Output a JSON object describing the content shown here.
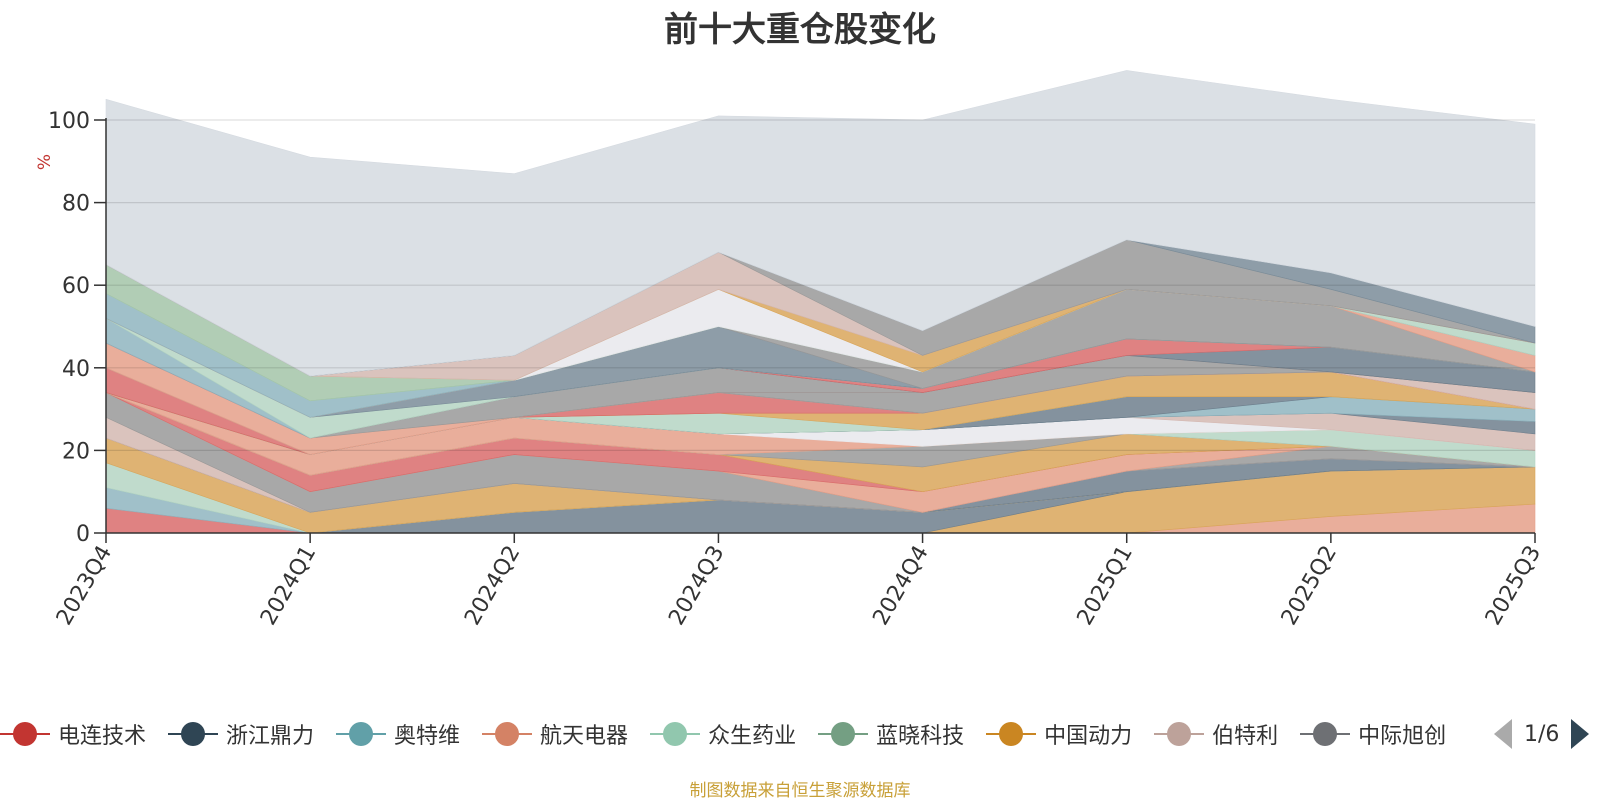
{
  "chart_data": {
    "type": "area",
    "title": "前十大重仓股变化",
    "ylabel": "%",
    "ylim": [
      0,
      100
    ],
    "yticks": [
      "0",
      "20",
      "40",
      "60",
      "80",
      "100"
    ],
    "categories": [
      "2023Q4",
      "2024Q1",
      "2024Q2",
      "2024Q3",
      "2024Q4",
      "2025Q1",
      "2025Q2",
      "2025Q3"
    ],
    "series": [
      {
        "name": "航天电器",
        "color": "#e5a08a",
        "values": [
          0,
          0,
          0,
          0,
          0,
          0,
          4,
          7
        ]
      },
      {
        "name": "中国动力",
        "color": "#d9a65a",
        "values": [
          0,
          0,
          0,
          0,
          0,
          10,
          11,
          9
        ]
      },
      {
        "name": "",
        "color": "#6e7f8d",
        "values": [
          0,
          0,
          5,
          8,
          5,
          0,
          0,
          0
        ]
      },
      {
        "name": "电连技术",
        "color": "#d96c6c",
        "values": [
          6,
          0,
          0,
          0,
          0,
          0,
          0,
          0
        ]
      },
      {
        "name": "奥特维",
        "color": "#8fb5bf",
        "values": [
          5,
          0,
          0,
          0,
          0,
          0,
          0,
          0
        ]
      },
      {
        "name": "众生药业",
        "color": "#b5d5c3",
        "values": [
          6,
          0,
          0,
          0,
          0,
          0,
          0,
          0
        ]
      },
      {
        "name": "中国动力",
        "color": "#d9a65a",
        "values": [
          6,
          5,
          7,
          0,
          0,
          0,
          0,
          0
        ]
      },
      {
        "name": "",
        "color": "#6e7f8d",
        "values": [
          0,
          0,
          0,
          0,
          0,
          5,
          3,
          0
        ]
      },
      {
        "name": "伯特利",
        "color": "#d4b8b2",
        "values": [
          5,
          0,
          0,
          0,
          0,
          0,
          0,
          0
        ]
      },
      {
        "name": "",
        "color": "#999999",
        "values": [
          6,
          5,
          7,
          7,
          0,
          0,
          3,
          0
        ]
      },
      {
        "name": "航天电器",
        "color": "#e5a08a",
        "values": [
          0,
          0,
          0,
          0,
          5,
          4,
          0,
          0
        ]
      },
      {
        "name": "电连技术",
        "color": "#d96c6c",
        "values": [
          0,
          4,
          4,
          4,
          0,
          0,
          0,
          0
        ]
      },
      {
        "name": "中国动力",
        "color": "#d9a65a",
        "values": [
          0,
          0,
          0,
          0,
          6,
          5,
          0,
          0
        ]
      },
      {
        "name": "",
        "color": "#999999",
        "values": [
          0,
          0,
          0,
          0,
          5,
          0,
          0,
          0
        ]
      },
      {
        "name": "众生药业",
        "color": "#b5d5c3",
        "values": [
          0,
          0,
          0,
          0,
          0,
          0,
          4,
          4
        ]
      },
      {
        "name": "航天电器",
        "color": "#e5a08a",
        "values": [
          0,
          5,
          5,
          5,
          0,
          0,
          0,
          0
        ]
      },
      {
        "name": "",
        "color": "#e8e8ec",
        "values": [
          0,
          0,
          0,
          0,
          4,
          4,
          0,
          0
        ]
      },
      {
        "name": "伯特利",
        "color": "#d4b8b2",
        "values": [
          0,
          0,
          0,
          0,
          0,
          0,
          4,
          4
        ]
      },
      {
        "name": "",
        "color": "#6e7f8d",
        "values": [
          0,
          0,
          0,
          0,
          0,
          0,
          0,
          3
        ]
      },
      {
        "name": "奥特维",
        "color": "#8fb5bf",
        "values": [
          0,
          0,
          0,
          0,
          0,
          0,
          4,
          3
        ]
      },
      {
        "name": "",
        "color": "#6e7f8d",
        "values": [
          0,
          0,
          0,
          0,
          0,
          5,
          0,
          0
        ]
      },
      {
        "name": "众生药业",
        "color": "#b5d5c3",
        "values": [
          0,
          0,
          0,
          5,
          0,
          0,
          0,
          0
        ]
      },
      {
        "name": "中国动力",
        "color": "#d9a65a",
        "values": [
          0,
          0,
          0,
          0,
          4,
          5,
          6,
          0
        ]
      },
      {
        "name": "电连技术",
        "color": "#d96c6c",
        "values": [
          6,
          0,
          0,
          5,
          0,
          0,
          0,
          0
        ]
      },
      {
        "name": "伯特利",
        "color": "#d4b8b2",
        "values": [
          0,
          0,
          0,
          0,
          0,
          0,
          0,
          4
        ]
      },
      {
        "name": "",
        "color": "#999999",
        "values": [
          0,
          0,
          0,
          0,
          5,
          5,
          0,
          0
        ]
      },
      {
        "name": "航天电器",
        "color": "#e5a08a",
        "values": [
          6,
          4,
          0,
          0,
          0,
          0,
          0,
          0
        ]
      },
      {
        "name": "",
        "color": "#999999",
        "values": [
          0,
          0,
          5,
          6,
          0,
          0,
          0,
          0
        ]
      },
      {
        "name": "",
        "color": "#6e7f8d",
        "values": [
          0,
          0,
          0,
          0,
          0,
          0,
          6,
          5
        ]
      },
      {
        "name": "电连技术",
        "color": "#d96c6c",
        "values": [
          0,
          0,
          0,
          0,
          1,
          4,
          0,
          0
        ]
      },
      {
        "name": "奥特维",
        "color": "#8fb5bf",
        "values": [
          6,
          0,
          0,
          0,
          0,
          0,
          0,
          0
        ]
      },
      {
        "name": "众生药业",
        "color": "#b5d5c3",
        "values": [
          0,
          5,
          0,
          0,
          0,
          0,
          0,
          0
        ]
      },
      {
        "name": "",
        "color": "#7a8c99",
        "values": [
          0,
          0,
          4,
          10,
          0,
          0,
          0,
          0
        ]
      },
      {
        "name": "",
        "color": "#999999",
        "values": [
          0,
          0,
          0,
          0,
          4,
          12,
          10,
          0
        ]
      },
      {
        "name": "航天电器",
        "color": "#e5a08a",
        "values": [
          0,
          0,
          0,
          0,
          0,
          0,
          0,
          4
        ]
      },
      {
        "name": "奥特维",
        "color": "#8fb5bf",
        "values": [
          6,
          4,
          0,
          0,
          0,
          0,
          0,
          0
        ]
      },
      {
        "name": "众生药业",
        "color": "#b5d5c3",
        "values": [
          0,
          0,
          0,
          0,
          0,
          0,
          0,
          3
        ]
      },
      {
        "name": "蓝晓科技",
        "color": "#a3c4a8",
        "values": [
          7,
          6,
          0,
          0,
          0,
          0,
          0,
          0
        ]
      },
      {
        "name": "",
        "color": "#e8e8ec",
        "values": [
          0,
          0,
          0,
          9,
          0,
          0,
          0,
          0
        ]
      },
      {
        "name": "中国动力",
        "color": "#d9a65a",
        "values": [
          0,
          0,
          0,
          0,
          4,
          0,
          0,
          0
        ]
      },
      {
        "name": "伯特利",
        "color": "#d4b8b2",
        "values": [
          0,
          0,
          6,
          9,
          0,
          0,
          0,
          0
        ]
      },
      {
        "name": "",
        "color": "#999999",
        "values": [
          0,
          0,
          0,
          0,
          6,
          12,
          4,
          0
        ]
      },
      {
        "name": "",
        "color": "#7a8c99",
        "values": [
          0,
          0,
          0,
          0,
          0,
          0,
          4,
          4
        ]
      },
      {
        "name": "",
        "color": "#d5dae0",
        "values": [
          40,
          53,
          44,
          33,
          51,
          41,
          42,
          49
        ]
      }
    ],
    "grid": true
  },
  "legend": {
    "items": [
      {
        "label": "电连技术",
        "color": "#c23531"
      },
      {
        "label": "浙江鼎力",
        "color": "#2f4554"
      },
      {
        "label": "奥特维",
        "color": "#61a0a8"
      },
      {
        "label": "航天电器",
        "color": "#d48265"
      },
      {
        "label": "众生药业",
        "color": "#91c7ae"
      },
      {
        "label": "蓝晓科技",
        "color": "#749f83"
      },
      {
        "label": "中国动力",
        "color": "#ca8622"
      },
      {
        "label": "伯特利",
        "color": "#bda29a"
      },
      {
        "label": "中际旭创",
        "color": "#6e7074"
      }
    ],
    "page": "1/6"
  },
  "source": "制图数据来自恒生聚源数据库"
}
